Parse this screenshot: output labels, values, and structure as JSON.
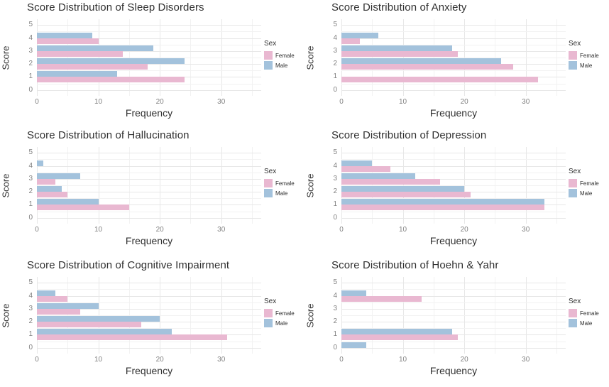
{
  "figure": {
    "background": "#ffffff"
  },
  "colors": {
    "female": "#E9B8D1",
    "male": "#A3C2DC",
    "grid_major": "#E7E7E7",
    "grid_minor": "#F2F2F2",
    "tick_text": "#828282",
    "text": "#303030"
  },
  "legend": {
    "title": "Sex",
    "items": [
      {
        "label": "Female",
        "key": "female"
      },
      {
        "label": "Male",
        "key": "male"
      }
    ],
    "position": "right"
  },
  "axes": {
    "x_tick_labels": [
      "0",
      "10",
      "20",
      "30"
    ],
    "x_tick_values": [
      0,
      10,
      20,
      30
    ],
    "minor_x": [
      5,
      15,
      25,
      35
    ],
    "y_tick_labels": [
      "0",
      "1",
      "2",
      "3",
      "4",
      "5"
    ],
    "y_tick_values": [
      0,
      1,
      2,
      3,
      4,
      5
    ],
    "x_max": 36.5,
    "y_min": -0.45,
    "y_max": 5.45,
    "grid": true
  },
  "chart_data": [
    {
      "type": "bar",
      "orientation": "horizontal",
      "title": "Score Distribution of Sleep Disorders",
      "xlabel": "Frequency",
      "ylabel": "Score",
      "legend_title": "Sex",
      "series_names": [
        "Female",
        "Male"
      ],
      "xlim": [
        0,
        36.5
      ],
      "x_ticks": [
        0,
        10,
        20,
        30
      ],
      "y_ticks": [
        0,
        1,
        2,
        3,
        4,
        5
      ],
      "bars": [
        {
          "score": 4,
          "male": 9,
          "female": 10
        },
        {
          "score": 3,
          "male": 19,
          "female": 14
        },
        {
          "score": 2,
          "male": 24,
          "female": 18
        },
        {
          "score": 1,
          "male": 13,
          "female": 24
        }
      ]
    },
    {
      "type": "bar",
      "orientation": "horizontal",
      "title": "Score Distribution of Anxiety",
      "xlabel": "Frequency",
      "ylabel": "Score",
      "legend_title": "Sex",
      "series_names": [
        "Female",
        "Male"
      ],
      "xlim": [
        0,
        36.5
      ],
      "x_ticks": [
        0,
        10,
        20,
        30
      ],
      "y_ticks": [
        0,
        1,
        2,
        3,
        4,
        5
      ],
      "bars": [
        {
          "score": 4,
          "male": 6,
          "female": 3
        },
        {
          "score": 3,
          "male": 18,
          "female": 19
        },
        {
          "score": 2,
          "male": 26,
          "female": 28
        },
        {
          "score": 1,
          "male": null,
          "female": 32
        }
      ]
    },
    {
      "type": "bar",
      "orientation": "horizontal",
      "title": "Score Distribution of Hallucination",
      "xlabel": "Frequency",
      "ylabel": "Score",
      "legend_title": "Sex",
      "series_names": [
        "Female",
        "Male"
      ],
      "xlim": [
        0,
        36.5
      ],
      "x_ticks": [
        0,
        10,
        20,
        30
      ],
      "y_ticks": [
        0,
        1,
        2,
        3,
        4,
        5
      ],
      "bars": [
        {
          "score": 4,
          "male": 1,
          "female": null
        },
        {
          "score": 3,
          "male": 7,
          "female": 3
        },
        {
          "score": 2,
          "male": 4,
          "female": 5
        },
        {
          "score": 1,
          "male": 10,
          "female": 15
        }
      ]
    },
    {
      "type": "bar",
      "orientation": "horizontal",
      "title": "Score Distribution of Depression",
      "xlabel": "Frequency",
      "ylabel": "Score",
      "legend_title": "Sex",
      "series_names": [
        "Female",
        "Male"
      ],
      "xlim": [
        0,
        36.5
      ],
      "x_ticks": [
        0,
        10,
        20,
        30
      ],
      "y_ticks": [
        0,
        1,
        2,
        3,
        4,
        5
      ],
      "bars": [
        {
          "score": 4,
          "male": 5,
          "female": 8
        },
        {
          "score": 3,
          "male": 12,
          "female": 16
        },
        {
          "score": 2,
          "male": 20,
          "female": 21
        },
        {
          "score": 1,
          "male": 33,
          "female": 33
        }
      ]
    },
    {
      "type": "bar",
      "orientation": "horizontal",
      "title": "Score Distribution of Cognitive Impairment",
      "xlabel": "Frequency",
      "ylabel": "Score",
      "legend_title": "Sex",
      "series_names": [
        "Female",
        "Male"
      ],
      "xlim": [
        0,
        36.5
      ],
      "x_ticks": [
        0,
        10,
        20,
        30
      ],
      "y_ticks": [
        0,
        1,
        2,
        3,
        4,
        5
      ],
      "bars": [
        {
          "score": 4,
          "male": 3,
          "female": 5
        },
        {
          "score": 3,
          "male": 10,
          "female": 7
        },
        {
          "score": 2,
          "male": 20,
          "female": 17
        },
        {
          "score": 1,
          "male": 22,
          "female": 31
        }
      ]
    },
    {
      "type": "bar",
      "orientation": "horizontal",
      "title": "Score Distribution of Hoehn & Yahr",
      "xlabel": "Frequency",
      "ylabel": "Score",
      "legend_title": "Sex",
      "series_names": [
        "Female",
        "Male"
      ],
      "xlim": [
        0,
        36.5
      ],
      "x_ticks": [
        0,
        10,
        20,
        30
      ],
      "y_ticks": [
        0,
        1,
        2,
        3,
        4,
        5
      ],
      "bars": [
        {
          "score": 4,
          "male": 4,
          "female": 13
        },
        {
          "score": 1,
          "male": 18,
          "female": 19
        },
        {
          "score": 0,
          "male": 4,
          "female": null
        }
      ]
    }
  ]
}
